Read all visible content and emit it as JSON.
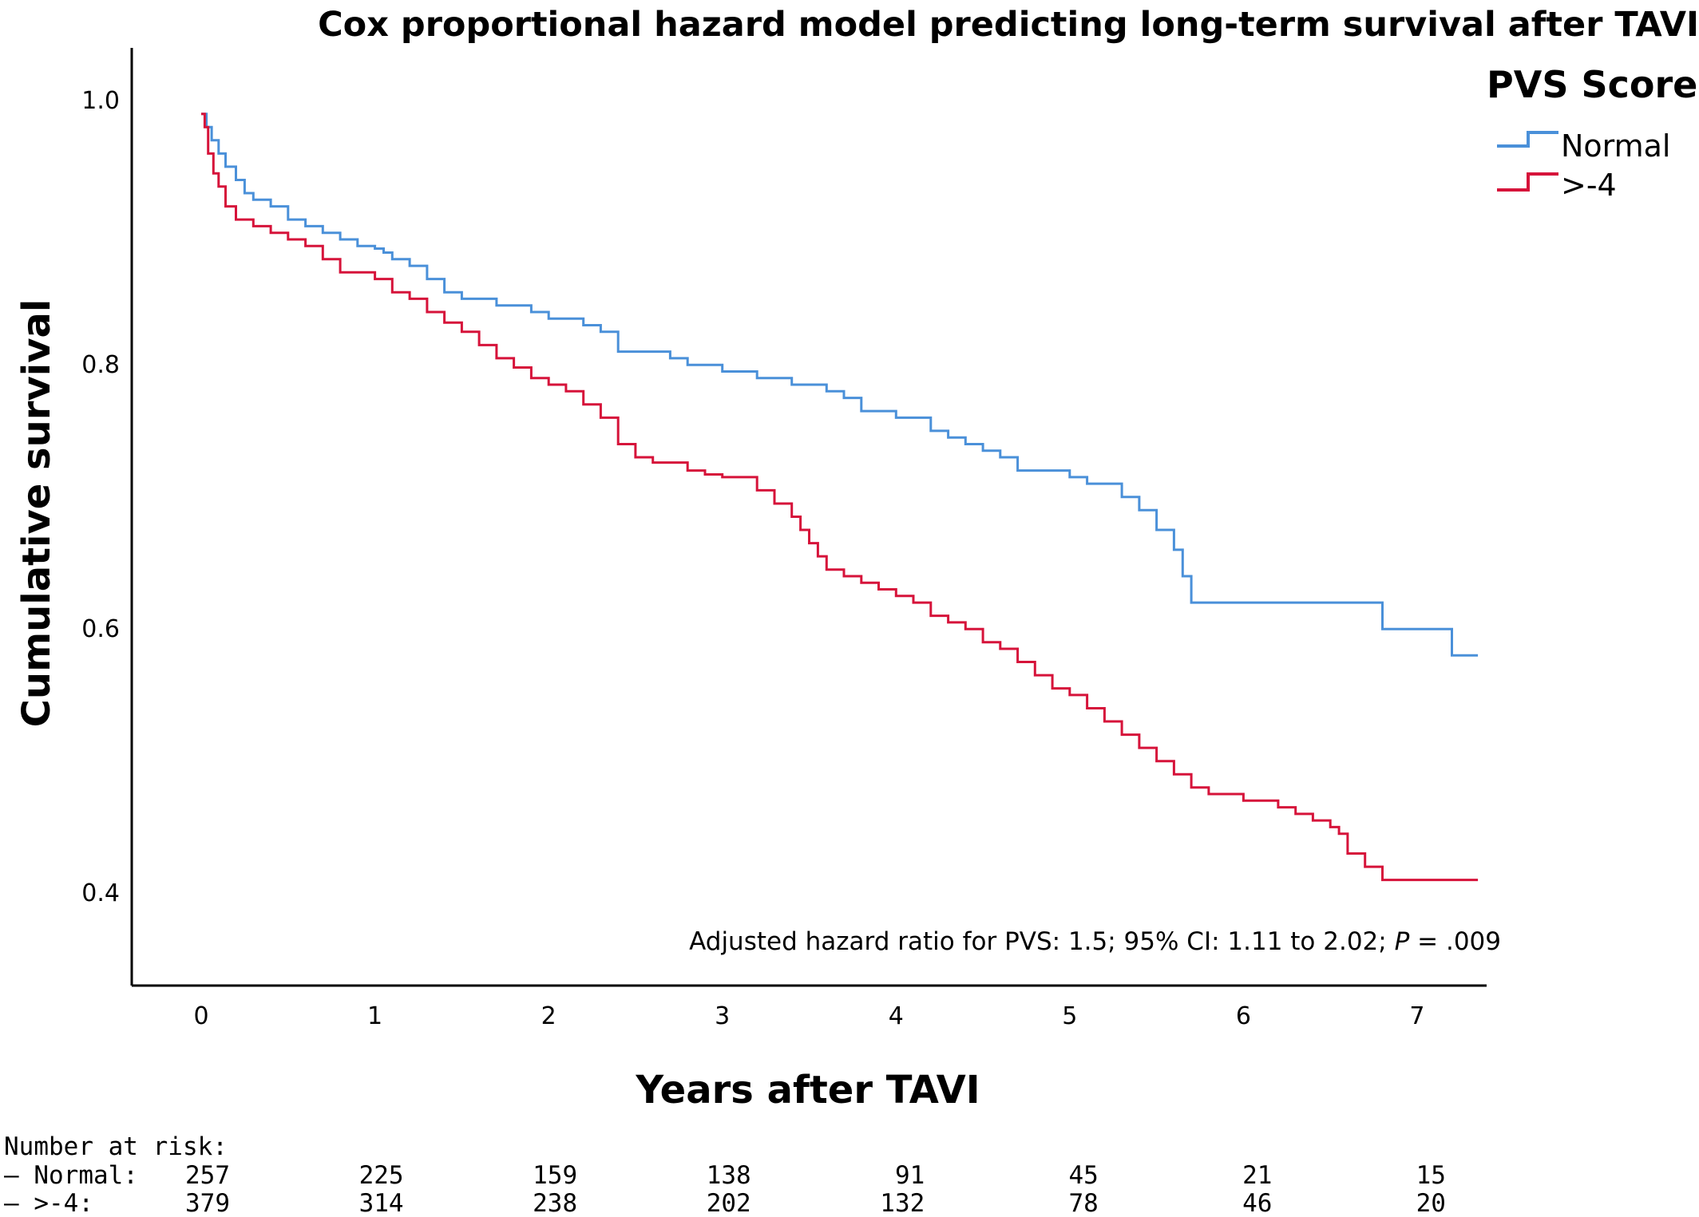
{
  "chart_data": {
    "type": "line",
    "title": "Cox proportional hazard model predicting long-term survival after TAVI",
    "xlabel": "Years after TAVI",
    "ylabel": "Cumulative survival",
    "xlim": [
      -0.4,
      7.4
    ],
    "ylim": [
      0.33,
      1.04
    ],
    "x_ticks": [
      0,
      1,
      2,
      3,
      4,
      5,
      6,
      7
    ],
    "x_tick_labels": [
      "0",
      "1",
      "2",
      "3",
      "4",
      "5",
      "6",
      "7"
    ],
    "y_ticks": [
      1.0,
      0.8,
      0.6,
      0.4
    ],
    "y_tick_labels": [
      "1.0",
      "0.8",
      "0.6",
      "0.4"
    ],
    "grid": false,
    "legend": {
      "title": "PVS Score",
      "placement": "top-right",
      "entries": [
        {
          "label": "Normal",
          "color": "#4a90d9"
        },
        {
          "label": ">-4",
          "color": "#d6133a"
        }
      ]
    },
    "annotation": {
      "prefix": "Adjusted hazard ratio for PVS: 1.5; 95% CI: 1.11 to 2.02; ",
      "p_symbol": "P",
      "suffix": " = .009"
    },
    "series": [
      {
        "name": "Normal",
        "color": "#4a90d9",
        "step": true,
        "x": [
          0,
          0.03,
          0.06,
          0.1,
          0.14,
          0.2,
          0.25,
          0.3,
          0.4,
          0.5,
          0.6,
          0.7,
          0.8,
          0.9,
          1.0,
          1.05,
          1.1,
          1.2,
          1.3,
          1.4,
          1.5,
          1.7,
          1.8,
          1.9,
          2.0,
          2.2,
          2.3,
          2.4,
          2.7,
          2.8,
          3.0,
          3.2,
          3.4,
          3.6,
          3.7,
          3.8,
          4.0,
          4.2,
          4.3,
          4.4,
          4.5,
          4.6,
          4.7,
          5.0,
          5.1,
          5.3,
          5.4,
          5.5,
          5.6,
          5.65,
          5.7,
          5.8,
          6.0,
          6.5,
          6.8,
          7.0,
          7.2,
          7.35
        ],
        "y": [
          0.99,
          0.98,
          0.97,
          0.96,
          0.95,
          0.94,
          0.93,
          0.925,
          0.92,
          0.91,
          0.905,
          0.9,
          0.895,
          0.89,
          0.888,
          0.885,
          0.88,
          0.875,
          0.865,
          0.855,
          0.85,
          0.845,
          0.845,
          0.84,
          0.835,
          0.83,
          0.825,
          0.81,
          0.805,
          0.8,
          0.795,
          0.79,
          0.785,
          0.78,
          0.775,
          0.765,
          0.76,
          0.75,
          0.745,
          0.74,
          0.735,
          0.73,
          0.72,
          0.715,
          0.71,
          0.7,
          0.69,
          0.675,
          0.66,
          0.64,
          0.62,
          0.62,
          0.62,
          0.62,
          0.6,
          0.6,
          0.58,
          0.58
        ]
      },
      {
        "name": ">-4",
        "color": "#d6133a",
        "step": true,
        "x": [
          0,
          0.02,
          0.04,
          0.07,
          0.1,
          0.14,
          0.2,
          0.3,
          0.4,
          0.5,
          0.6,
          0.7,
          0.8,
          1.0,
          1.1,
          1.2,
          1.3,
          1.4,
          1.5,
          1.6,
          1.7,
          1.8,
          1.9,
          2.0,
          2.1,
          2.2,
          2.3,
          2.4,
          2.5,
          2.6,
          2.8,
          2.9,
          3.0,
          3.2,
          3.3,
          3.4,
          3.45,
          3.5,
          3.55,
          3.6,
          3.7,
          3.8,
          3.9,
          4.0,
          4.1,
          4.2,
          4.3,
          4.4,
          4.5,
          4.6,
          4.7,
          4.8,
          4.9,
          5.0,
          5.1,
          5.2,
          5.3,
          5.4,
          5.5,
          5.6,
          5.7,
          5.8,
          6.0,
          6.2,
          6.3,
          6.4,
          6.5,
          6.55,
          6.6,
          6.7,
          6.8,
          7.0,
          7.35
        ],
        "y": [
          0.99,
          0.98,
          0.96,
          0.945,
          0.935,
          0.92,
          0.91,
          0.905,
          0.9,
          0.895,
          0.89,
          0.88,
          0.87,
          0.865,
          0.855,
          0.85,
          0.84,
          0.832,
          0.825,
          0.815,
          0.805,
          0.798,
          0.79,
          0.785,
          0.78,
          0.77,
          0.76,
          0.74,
          0.73,
          0.726,
          0.72,
          0.717,
          0.715,
          0.705,
          0.695,
          0.685,
          0.675,
          0.665,
          0.655,
          0.645,
          0.64,
          0.635,
          0.63,
          0.625,
          0.62,
          0.61,
          0.605,
          0.6,
          0.59,
          0.585,
          0.575,
          0.565,
          0.555,
          0.55,
          0.54,
          0.53,
          0.52,
          0.51,
          0.5,
          0.49,
          0.48,
          0.475,
          0.47,
          0.465,
          0.46,
          0.455,
          0.45,
          0.445,
          0.43,
          0.42,
          0.41,
          0.41,
          0.41
        ]
      }
    ],
    "risk_table": {
      "header": "Number at risk:",
      "rows": [
        {
          "label": "– Normal:",
          "values": [
            "257",
            "225",
            "159",
            "138",
            "91",
            "45",
            "21",
            "15"
          ]
        },
        {
          "label": "– >-4:",
          "values": [
            "379",
            "314",
            "238",
            "202",
            "132",
            "78",
            "46",
            "20"
          ]
        }
      ]
    }
  }
}
